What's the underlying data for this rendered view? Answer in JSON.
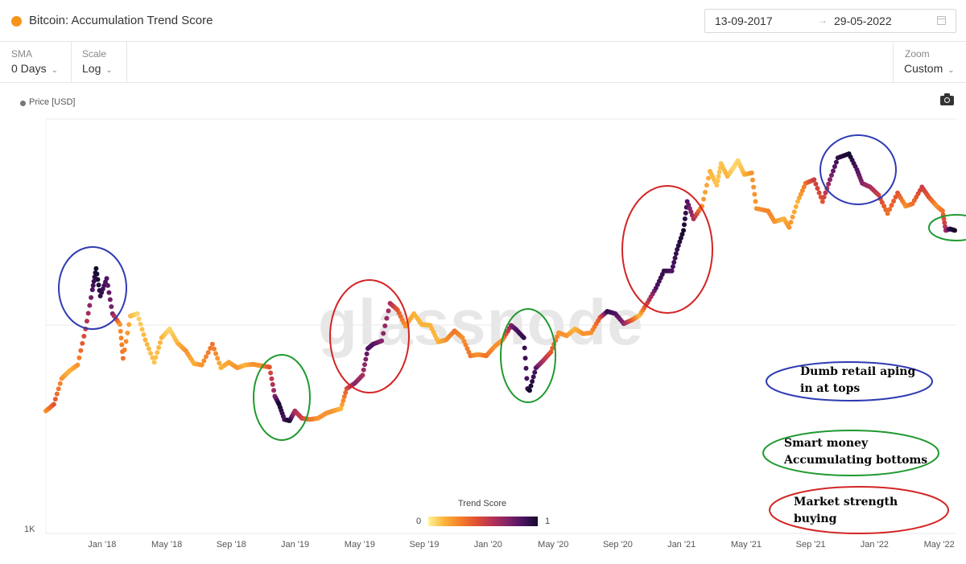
{
  "header": {
    "title": "Bitcoin: Accumulation Trend Score",
    "date_start": "13-09-2017",
    "date_arrow": "→",
    "date_end": "29-05-2022"
  },
  "toolbar": {
    "sma_label": "SMA",
    "sma_value": "0 Days",
    "scale_label": "Scale",
    "scale_value": "Log",
    "zoom_label": "Zoom",
    "zoom_value": "Custom"
  },
  "watermark": "glassnode",
  "annotations": [
    {
      "text": "Dumb retail aping\nin at tops",
      "color": "#2f3bb3"
    },
    {
      "text": "Smart money\nAccumulating bottoms",
      "color": "#1f9a2f"
    },
    {
      "text": "Market strength\nbuying",
      "color": "#d42424"
    }
  ],
  "chart_data": {
    "type": "scatter",
    "title": "Bitcoin: Accumulation Trend Score",
    "legend": [
      "Price [USD]"
    ],
    "legend_position": "top-left",
    "y_scale": "log",
    "y_tick_labels": [
      "1K"
    ],
    "x_tick_labels": [
      "Jan '18",
      "May '18",
      "Sep '18",
      "Jan '19",
      "May '19",
      "Sep '19",
      "Jan '20",
      "May '20",
      "Sep '20",
      "Jan '21",
      "May '21",
      "Sep '21",
      "Jan '22",
      "May '22"
    ],
    "x_range": [
      "2017-09-13",
      "2022-05-29"
    ],
    "colorbar": {
      "title": "Trend Score",
      "min": 0,
      "max": 1
    },
    "series": [
      {
        "points": [
          [
            "2017-09-13",
            3900,
            0.3
          ],
          [
            "2017-09-28",
            4200,
            0.5
          ],
          [
            "2017-10-13",
            5600,
            0.3
          ],
          [
            "2017-10-28",
            6100,
            0.2
          ],
          [
            "2017-11-12",
            6500,
            0.3
          ],
          [
            "2017-11-27",
            9700,
            0.6
          ],
          [
            "2017-12-10",
            15000,
            0.9
          ],
          [
            "2017-12-17",
            19000,
            1.0
          ],
          [
            "2017-12-25",
            14000,
            0.95
          ],
          [
            "2018-01-06",
            17000,
            0.9
          ],
          [
            "2018-01-17",
            11500,
            0.8
          ],
          [
            "2018-01-31",
            10200,
            0.3
          ],
          [
            "2018-02-06",
            7000,
            0.4
          ],
          [
            "2018-02-20",
            11200,
            0.2
          ],
          [
            "2018-03-05",
            11500,
            0.1
          ],
          [
            "2018-03-20",
            8600,
            0.2
          ],
          [
            "2018-04-06",
            6700,
            0.15
          ],
          [
            "2018-04-20",
            8800,
            0.2
          ],
          [
            "2018-05-05",
            9700,
            0.1
          ],
          [
            "2018-05-20",
            8300,
            0.2
          ],
          [
            "2018-06-05",
            7600,
            0.3
          ],
          [
            "2018-06-20",
            6600,
            0.2
          ],
          [
            "2018-07-05",
            6500,
            0.3
          ],
          [
            "2018-07-25",
            8200,
            0.4
          ],
          [
            "2018-08-10",
            6300,
            0.2
          ],
          [
            "2018-08-25",
            6700,
            0.25
          ],
          [
            "2018-09-10",
            6300,
            0.3
          ],
          [
            "2018-09-25",
            6500,
            0.2
          ],
          [
            "2018-10-10",
            6550,
            0.3
          ],
          [
            "2018-10-25",
            6450,
            0.3
          ],
          [
            "2018-11-10",
            6350,
            0.5
          ],
          [
            "2018-11-20",
            4600,
            0.8
          ],
          [
            "2018-11-28",
            4200,
            1.0
          ],
          [
            "2018-12-08",
            3550,
            0.9
          ],
          [
            "2018-12-18",
            3500,
            1.0
          ],
          [
            "2018-12-28",
            3900,
            0.7
          ],
          [
            "2019-01-10",
            3600,
            0.6
          ],
          [
            "2019-01-25",
            3550,
            0.4
          ],
          [
            "2019-02-10",
            3600,
            0.3
          ],
          [
            "2019-02-25",
            3800,
            0.3
          ],
          [
            "2019-03-10",
            3900,
            0.3
          ],
          [
            "2019-03-25",
            4000,
            0.2
          ],
          [
            "2019-04-05",
            5000,
            0.5
          ],
          [
            "2019-04-20",
            5300,
            0.8
          ],
          [
            "2019-05-05",
            5800,
            0.7
          ],
          [
            "2019-05-15",
            7800,
            0.9
          ],
          [
            "2019-05-25",
            8200,
            0.9
          ],
          [
            "2019-06-10",
            8500,
            0.8
          ],
          [
            "2019-06-26",
            12900,
            0.7
          ],
          [
            "2019-07-10",
            12000,
            0.5
          ],
          [
            "2019-07-25",
            10000,
            0.3
          ],
          [
            "2019-08-10",
            11500,
            0.2
          ],
          [
            "2019-08-25",
            10200,
            0.2
          ],
          [
            "2019-09-10",
            10100,
            0.2
          ],
          [
            "2019-09-25",
            8400,
            0.2
          ],
          [
            "2019-10-10",
            8600,
            0.3
          ],
          [
            "2019-10-26",
            9500,
            0.4
          ],
          [
            "2019-11-10",
            8800,
            0.3
          ],
          [
            "2019-11-25",
            7200,
            0.4
          ],
          [
            "2019-12-10",
            7300,
            0.3
          ],
          [
            "2019-12-25",
            7200,
            0.4
          ],
          [
            "2020-01-10",
            8000,
            0.3
          ],
          [
            "2020-01-25",
            8600,
            0.3
          ],
          [
            "2020-02-10",
            10100,
            0.8
          ],
          [
            "2020-02-20",
            9600,
            0.9
          ],
          [
            "2020-03-05",
            8800,
            0.95
          ],
          [
            "2020-03-12",
            5000,
            0.9
          ],
          [
            "2020-03-16",
            4900,
            1.0
          ],
          [
            "2020-03-28",
            6300,
            0.9
          ],
          [
            "2020-04-10",
            6800,
            0.7
          ],
          [
            "2020-04-25",
            7500,
            0.5
          ],
          [
            "2020-05-10",
            9300,
            0.3
          ],
          [
            "2020-05-25",
            9000,
            0.3
          ],
          [
            "2020-06-10",
            9700,
            0.2
          ],
          [
            "2020-06-25",
            9200,
            0.3
          ],
          [
            "2020-07-10",
            9300,
            0.3
          ],
          [
            "2020-07-27",
            11000,
            0.5
          ],
          [
            "2020-08-10",
            11800,
            0.95
          ],
          [
            "2020-08-25",
            11500,
            0.9
          ],
          [
            "2020-09-10",
            10300,
            0.8
          ],
          [
            "2020-09-25",
            10700,
            0.5
          ],
          [
            "2020-10-10",
            11300,
            0.2
          ],
          [
            "2020-10-25",
            13000,
            0.6
          ],
          [
            "2020-11-10",
            15300,
            0.9
          ],
          [
            "2020-11-25",
            18500,
            0.95
          ],
          [
            "2020-12-10",
            18500,
            0.9
          ],
          [
            "2020-12-20",
            23500,
            0.95
          ],
          [
            "2021-01-01",
            29000,
            1.0
          ],
          [
            "2021-01-08",
            40000,
            0.9
          ],
          [
            "2021-01-20",
            33000,
            0.7
          ],
          [
            "2021-02-05",
            38000,
            0.3
          ],
          [
            "2021-02-20",
            56000,
            0.2
          ],
          [
            "2021-03-05",
            48000,
            0.15
          ],
          [
            "2021-03-13",
            61000,
            0.15
          ],
          [
            "2021-03-25",
            53000,
            0.2
          ],
          [
            "2021-04-05",
            58000,
            0.1
          ],
          [
            "2021-04-14",
            63000,
            0.1
          ],
          [
            "2021-04-26",
            54000,
            0.2
          ],
          [
            "2021-05-10",
            55000,
            0.3
          ],
          [
            "2021-05-19",
            37000,
            0.3
          ],
          [
            "2021-06-10",
            36000,
            0.35
          ],
          [
            "2021-06-22",
            32000,
            0.3
          ],
          [
            "2021-07-10",
            33000,
            0.2
          ],
          [
            "2021-07-20",
            30000,
            0.3
          ],
          [
            "2021-08-05",
            40000,
            0.2
          ],
          [
            "2021-08-20",
            49000,
            0.4
          ],
          [
            "2021-09-05",
            51000,
            0.6
          ],
          [
            "2021-09-21",
            40000,
            0.5
          ],
          [
            "2021-10-05",
            51000,
            0.8
          ],
          [
            "2021-10-20",
            65000,
            0.95
          ],
          [
            "2021-11-10",
            68000,
            1.0
          ],
          [
            "2021-11-25",
            57000,
            0.9
          ],
          [
            "2021-12-05",
            49000,
            0.8
          ],
          [
            "2021-12-20",
            47000,
            0.7
          ],
          [
            "2022-01-05",
            43000,
            0.6
          ],
          [
            "2022-01-22",
            35000,
            0.4
          ],
          [
            "2022-02-10",
            44000,
            0.5
          ],
          [
            "2022-02-25",
            38000,
            0.3
          ],
          [
            "2022-03-10",
            39000,
            0.4
          ],
          [
            "2022-03-28",
            47000,
            0.6
          ],
          [
            "2022-04-10",
            42000,
            0.5
          ],
          [
            "2022-04-25",
            38000,
            0.3
          ],
          [
            "2022-05-06",
            36000,
            0.4
          ],
          [
            "2022-05-12",
            29000,
            0.7
          ],
          [
            "2022-05-20",
            29500,
            0.95
          ],
          [
            "2022-05-29",
            29000,
            1.0
          ]
        ]
      }
    ]
  }
}
